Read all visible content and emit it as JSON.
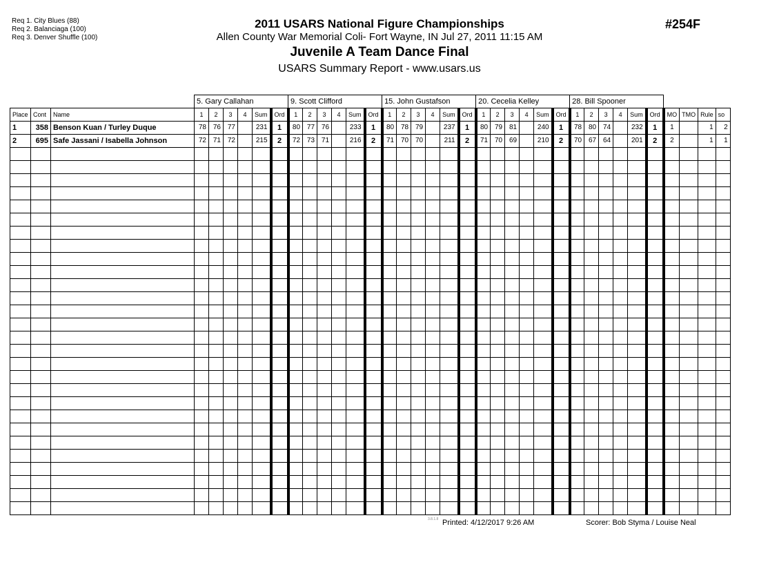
{
  "header": {
    "requirements": [
      "Req  1.  City Blues (88)",
      "Req  2.  Balanciaga (100)",
      "Req  3.  Denver Shuffle (100)"
    ],
    "title": "2011 USARS National Figure Championships",
    "venue": "Allen County War Memorial Coli- Fort Wayne, IN  Jul 27, 2011  11:15 AM",
    "event": "Juvenile A Team Dance Final",
    "report": "USARS Summary Report - www.usars.us",
    "event_number": "#254F"
  },
  "table": {
    "fixed_columns": [
      "Place",
      "Cont",
      "Name"
    ],
    "judge_columns": [
      "1",
      "2",
      "3",
      "4",
      "Sum",
      "Ord"
    ],
    "tail_columns": [
      "MO",
      "TMO",
      "Rule",
      "so"
    ],
    "judges": [
      "5.  Gary Callahan",
      "9.  Scott Clifford",
      "15.  John Gustafson",
      "20.  Cecelia Kelley",
      "28.  Bill Spooner"
    ],
    "rows": [
      {
        "place": "1",
        "cont": "358",
        "name": "Benson Kuan / Turley Duque",
        "scores": [
          [
            "78",
            "76",
            "77",
            "",
            "231",
            "1"
          ],
          [
            "80",
            "77",
            "76",
            "",
            "233",
            "1"
          ],
          [
            "80",
            "78",
            "79",
            "",
            "237",
            "1"
          ],
          [
            "80",
            "79",
            "81",
            "",
            "240",
            "1"
          ],
          [
            "78",
            "80",
            "74",
            "",
            "232",
            "1"
          ]
        ],
        "mo": "1",
        "tmo": "",
        "rule": "1",
        "so": "2"
      },
      {
        "place": "2",
        "cont": "695",
        "name": "Safe Jassani / Isabella Johnson",
        "scores": [
          [
            "72",
            "71",
            "72",
            "",
            "215",
            "2"
          ],
          [
            "72",
            "73",
            "71",
            "",
            "216",
            "2"
          ],
          [
            "71",
            "70",
            "70",
            "",
            "211",
            "2"
          ],
          [
            "71",
            "70",
            "69",
            "",
            "210",
            "2"
          ],
          [
            "70",
            "67",
            "64",
            "",
            "201",
            "2"
          ]
        ],
        "mo": "2",
        "tmo": "",
        "rule": "1",
        "so": "1"
      }
    ]
  },
  "footer": {
    "version": "3.8.1.8",
    "printed": "Printed:  4/12/2017  9:26 AM",
    "scorer": "Scorer:   Bob Styma / Louise Neal"
  }
}
